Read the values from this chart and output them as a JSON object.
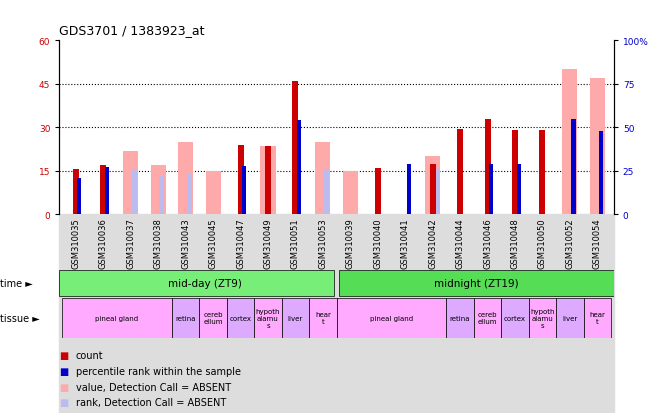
{
  "title": "GDS3701 / 1383923_at",
  "samples": [
    "GSM310035",
    "GSM310036",
    "GSM310037",
    "GSM310038",
    "GSM310043",
    "GSM310045",
    "GSM310047",
    "GSM310049",
    "GSM310051",
    "GSM310053",
    "GSM310039",
    "GSM310040",
    "GSM310041",
    "GSM310042",
    "GSM310044",
    "GSM310046",
    "GSM310048",
    "GSM310050",
    "GSM310052",
    "GSM310054"
  ],
  "count_values": [
    15.5,
    17.0,
    null,
    null,
    null,
    null,
    24.0,
    23.5,
    46.0,
    null,
    null,
    16.0,
    null,
    17.5,
    29.5,
    33.0,
    29.0,
    29.0,
    null,
    null
  ],
  "rank_values": [
    21,
    27,
    null,
    null,
    null,
    null,
    28,
    null,
    54,
    null,
    null,
    null,
    29,
    null,
    null,
    29,
    29,
    null,
    55,
    48
  ],
  "absent_value": [
    null,
    null,
    22,
    17,
    25,
    15,
    null,
    23.5,
    null,
    25,
    15,
    null,
    null,
    20,
    null,
    null,
    null,
    null,
    50,
    47
  ],
  "absent_rank": [
    null,
    null,
    26,
    22,
    23,
    null,
    null,
    null,
    null,
    26,
    null,
    null,
    null,
    26,
    null,
    null,
    null,
    null,
    55,
    null
  ],
  "ylim_left": [
    0,
    60
  ],
  "ylim_right": [
    0,
    100
  ],
  "yticks_left": [
    0,
    15,
    30,
    45,
    60
  ],
  "yticks_right": [
    0,
    25,
    50,
    75,
    100
  ],
  "bar_color_count": "#cc0000",
  "bar_color_rank": "#0000cc",
  "bar_color_absent_value": "#ffaaaa",
  "bar_color_absent_rank": "#bbbbee",
  "time_midday_label": "mid-day (ZT9)",
  "time_midnight_label": "midnight (ZT19)",
  "time_color": "#77ee77",
  "tissue_segments_midday": [
    {
      "label": "pineal gland",
      "start": 0,
      "end": 3,
      "color": "#ffaaff"
    },
    {
      "label": "retina",
      "start": 4,
      "end": 4,
      "color": "#ddaaff"
    },
    {
      "label": "cereb\nellum",
      "start": 5,
      "end": 5,
      "color": "#ffaaff"
    },
    {
      "label": "cortex",
      "start": 6,
      "end": 6,
      "color": "#ddaaff"
    },
    {
      "label": "hypoth\nalamu\ns",
      "start": 7,
      "end": 7,
      "color": "#ffaaff"
    },
    {
      "label": "liver",
      "start": 8,
      "end": 8,
      "color": "#ddaaff"
    },
    {
      "label": "hear\nt",
      "start": 9,
      "end": 9,
      "color": "#ffaaff"
    }
  ],
  "tissue_segments_midnight": [
    {
      "label": "pineal gland",
      "start": 10,
      "end": 13,
      "color": "#ffaaff"
    },
    {
      "label": "retina",
      "start": 14,
      "end": 14,
      "color": "#ddaaff"
    },
    {
      "label": "cereb\nellum",
      "start": 15,
      "end": 15,
      "color": "#ffaaff"
    },
    {
      "label": "cortex",
      "start": 16,
      "end": 16,
      "color": "#ddaaff"
    },
    {
      "label": "hypoth\nalamu\ns",
      "start": 17,
      "end": 17,
      "color": "#ffaaff"
    },
    {
      "label": "liver",
      "start": 18,
      "end": 18,
      "color": "#ddaaff"
    },
    {
      "label": "hear\nt",
      "start": 19,
      "end": 19,
      "color": "#ffaaff"
    }
  ],
  "bg_color": "#ffffff",
  "tick_fontsize": 6,
  "legend_items": [
    {
      "color": "#cc0000",
      "label": "count"
    },
    {
      "color": "#0000cc",
      "label": "percentile rank within the sample"
    },
    {
      "color": "#ffaaaa",
      "label": "value, Detection Call = ABSENT"
    },
    {
      "color": "#bbbbee",
      "label": "rank, Detection Call = ABSENT"
    }
  ]
}
